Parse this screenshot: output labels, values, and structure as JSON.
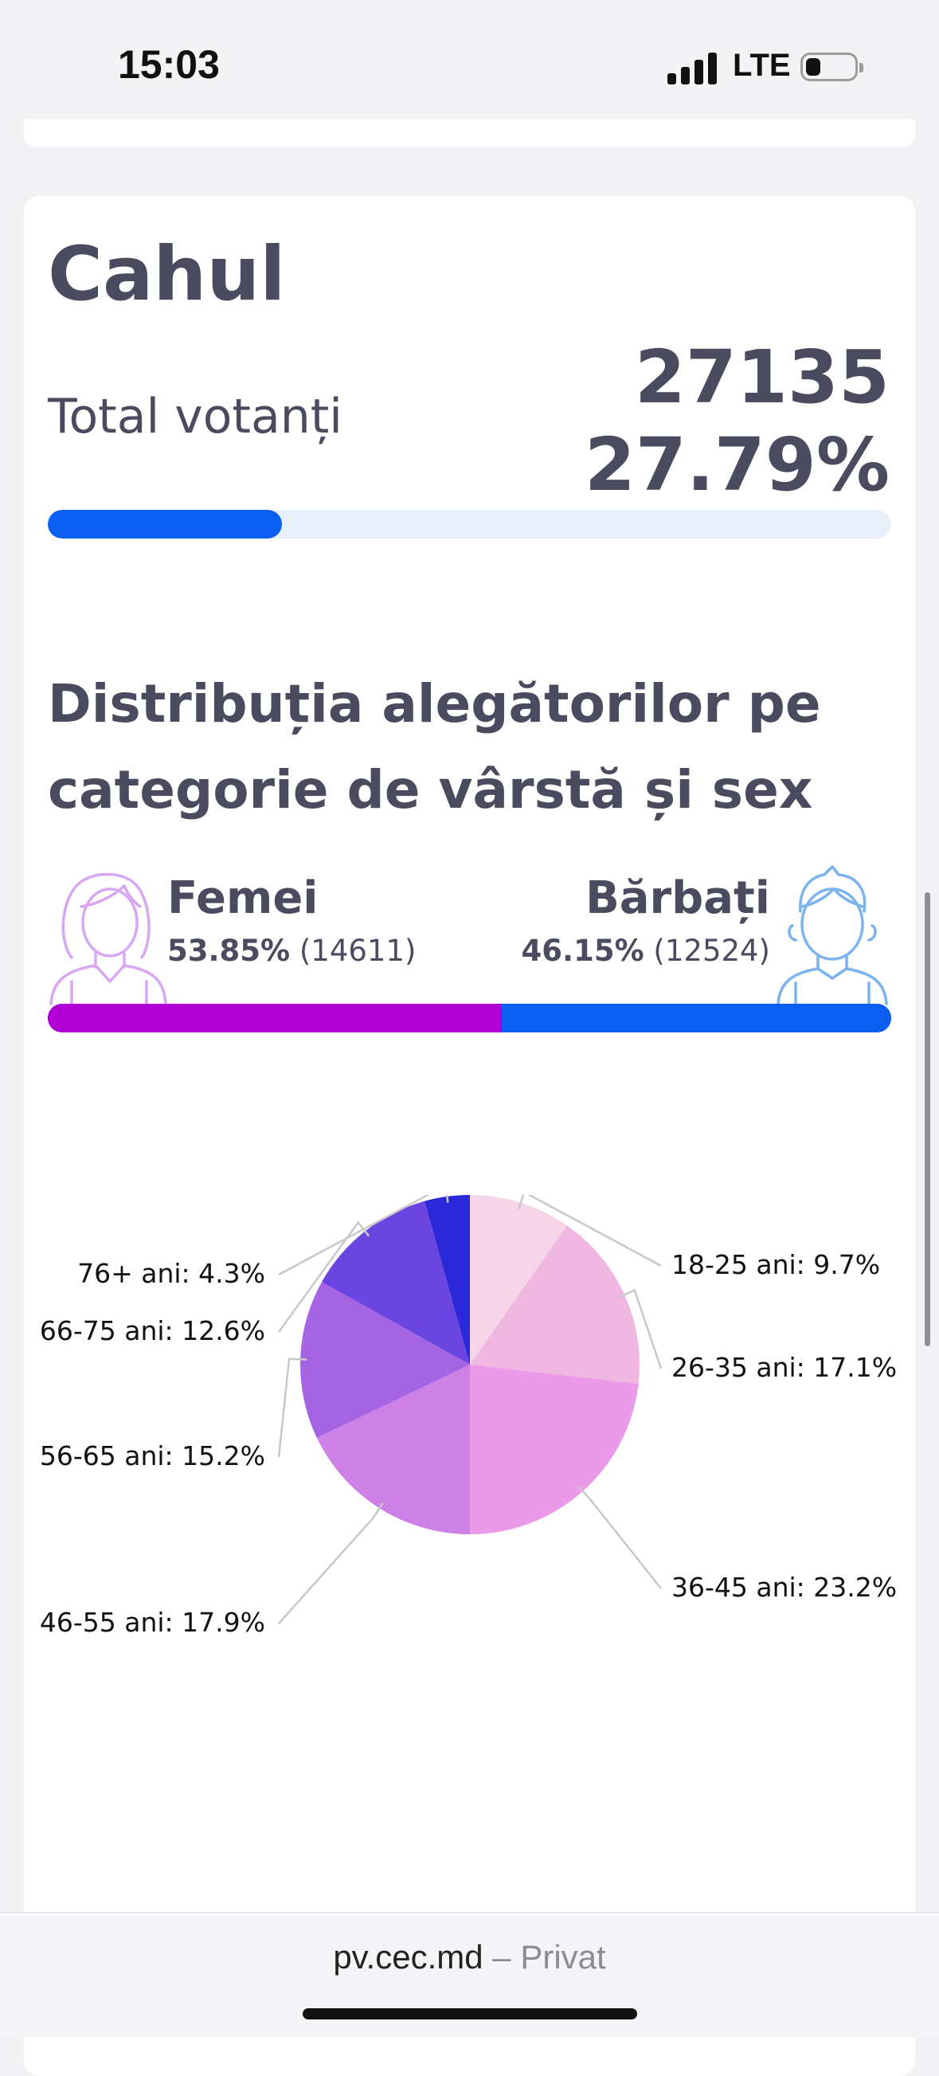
{
  "status_bar": {
    "time": "15:03",
    "network": "LTE"
  },
  "region": {
    "name": "Cahul",
    "total_label": "Total votanți",
    "total_count": "27135",
    "total_percent": "27.79%",
    "turnout_fraction": 0.2779
  },
  "distribution": {
    "title": "Distribuția alegătorilor pe categorie de vârstă și sex",
    "female": {
      "label": "Femei",
      "percent": "53.85%",
      "count": "(14611)",
      "fraction": 0.5385
    },
    "male": {
      "label": "Bărbați",
      "percent": "46.15%",
      "count": "(12524)",
      "fraction": 0.4615
    }
  },
  "colors": {
    "accent_blue": "#0a5ef0",
    "female_purple": "#b000d6",
    "female_icon": "#d8a6f2",
    "male_icon": "#7bb3ee"
  },
  "chart_data": {
    "type": "pie",
    "slices": [
      {
        "label": "18-25 ani: 9.7%",
        "category": "18-25 ani",
        "value": 9.7,
        "color": "#f5d5e7"
      },
      {
        "label": "26-35 ani: 17.1%",
        "category": "26-35 ani",
        "value": 17.1,
        "color": "#f0b8e0"
      },
      {
        "label": "36-45 ani: 23.2%",
        "category": "36-45 ani",
        "value": 23.2,
        "color": "#ea9ae8"
      },
      {
        "label": "46-55 ani: 17.9%",
        "category": "46-55 ani",
        "value": 17.9,
        "color": "#cd80e6"
      },
      {
        "label": "56-65 ani: 15.2%",
        "category": "56-65 ani",
        "value": 15.2,
        "color": "#a565e2"
      },
      {
        "label": "66-75 ani: 12.6%",
        "category": "66-75 ani",
        "value": 12.6,
        "color": "#6a45df"
      },
      {
        "label": "76+ ani: 4.3%",
        "category": "76+ ani",
        "value": 4.3,
        "color": "#2a28d8"
      }
    ]
  },
  "browser": {
    "url": "pv.cec.md",
    "separator": " – ",
    "mode": "Privat"
  }
}
